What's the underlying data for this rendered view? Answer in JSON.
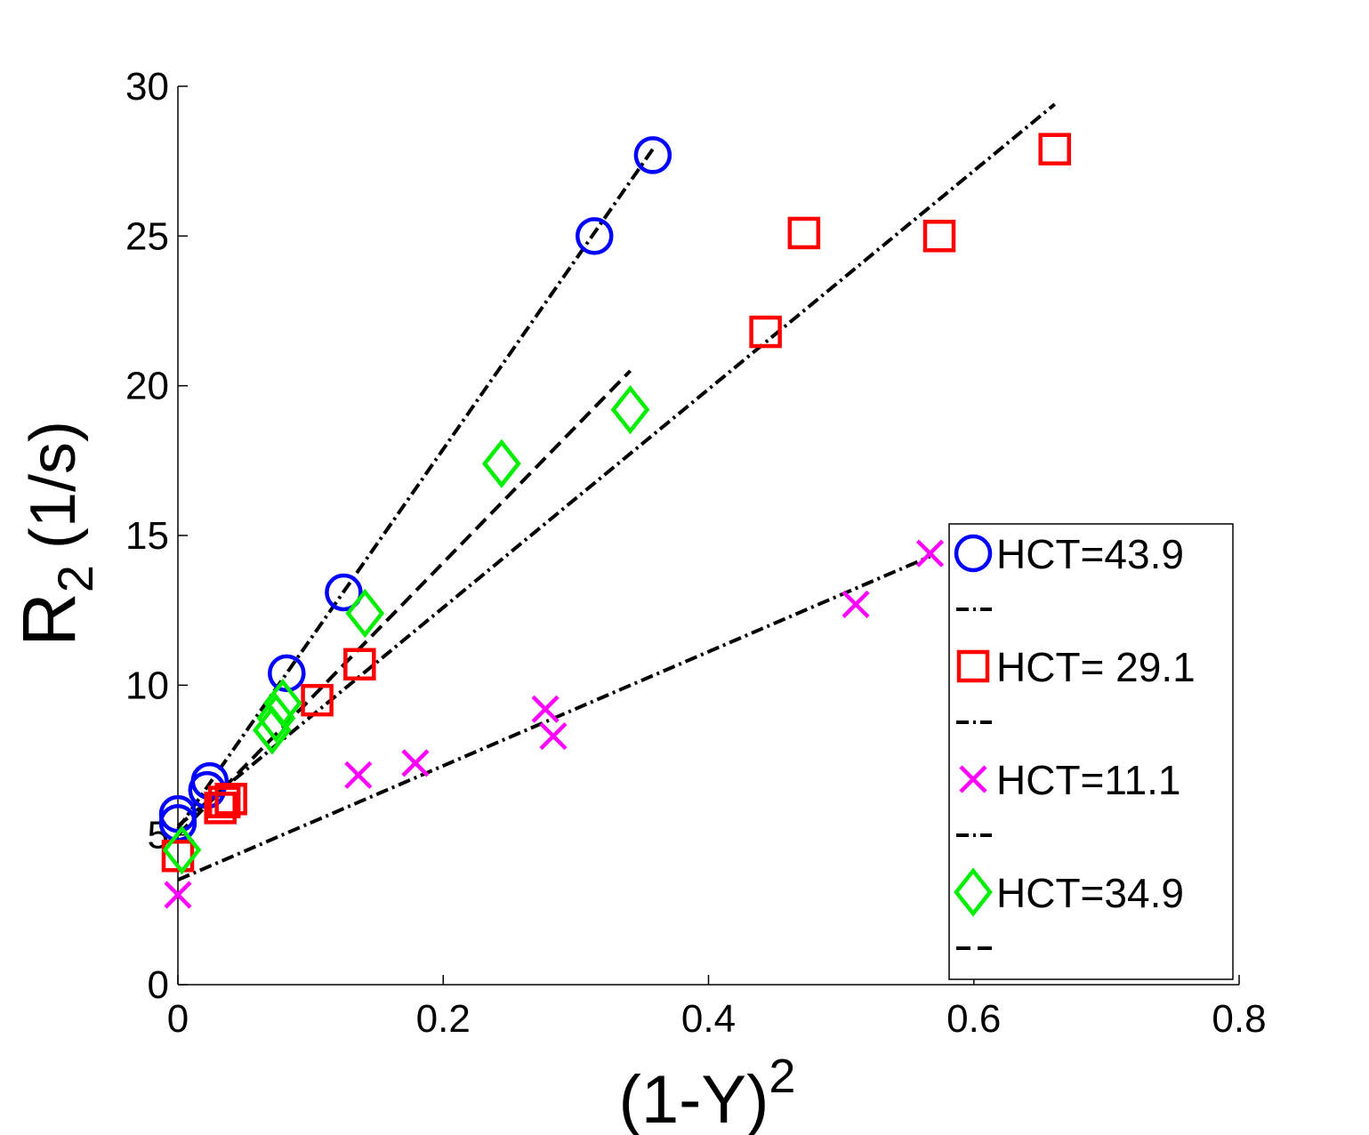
{
  "chart_data": {
    "type": "scatter",
    "title": "",
    "xlabel": "(1-Y)",
    "xlabel_superscript": "2",
    "ylabel_main": "R",
    "ylabel_subscript": "2",
    "ylabel_unit": "(1/s)",
    "xlim": [
      0,
      0.8
    ],
    "ylim": [
      0,
      30
    ],
    "xticks": [
      0,
      0.2,
      0.4,
      0.6,
      0.8
    ],
    "xtick_labels": [
      "0",
      "0.2",
      "0.4",
      "0.6",
      "0.8"
    ],
    "yticks": [
      0,
      5,
      10,
      15,
      20,
      25,
      30
    ],
    "ytick_labels": [
      "0",
      "5",
      "10",
      "15",
      "20",
      "25",
      "30"
    ],
    "legend_position": "lower-right",
    "series": [
      {
        "name": "HCT=43.9",
        "marker": "circle",
        "color": "#0000ff",
        "x": [
          0.0,
          0.0,
          0.022,
          0.024,
          0.082,
          0.125,
          0.314,
          0.358
        ],
        "y": [
          5.4,
          5.7,
          6.5,
          6.8,
          10.4,
          13.1,
          25.0,
          27.7
        ],
        "fit": {
          "x": [
            0.0,
            0.358
          ],
          "y": [
            5.2,
            27.9
          ],
          "style": "dash-dot"
        }
      },
      {
        "name": "HCT= 29.1",
        "marker": "square",
        "color": "#ff0000",
        "x": [
          0.0,
          0.032,
          0.035,
          0.04,
          0.105,
          0.137,
          0.443,
          0.472,
          0.574,
          0.661
        ],
        "y": [
          4.3,
          5.9,
          6.1,
          6.2,
          9.5,
          10.7,
          21.8,
          25.1,
          25.0,
          27.9
        ],
        "fit": {
          "x": [
            0.0,
            0.661
          ],
          "y": [
            5.3,
            29.4
          ],
          "style": "dash-dot"
        }
      },
      {
        "name": "HCT=11.1",
        "marker": "x",
        "color": "#ff00ff",
        "x": [
          0.0,
          0.136,
          0.179,
          0.277,
          0.283,
          0.511,
          0.567
        ],
        "y": [
          3.0,
          7.0,
          7.4,
          9.2,
          8.3,
          12.7,
          14.4
        ],
        "fit": {
          "x": [
            0.0,
            0.567
          ],
          "y": [
            3.5,
            14.3
          ],
          "style": "dash-dot"
        }
      },
      {
        "name": "HCT=34.9",
        "marker": "diamond",
        "color": "#00ee00",
        "x": [
          0.003,
          0.071,
          0.074,
          0.079,
          0.141,
          0.244,
          0.341
        ],
        "y": [
          4.5,
          8.5,
          8.9,
          9.4,
          12.4,
          17.4,
          19.2
        ],
        "fit": {
          "x": [
            0.0,
            0.341
          ],
          "y": [
            5.0,
            20.5
          ],
          "style": "dashed"
        }
      }
    ]
  }
}
